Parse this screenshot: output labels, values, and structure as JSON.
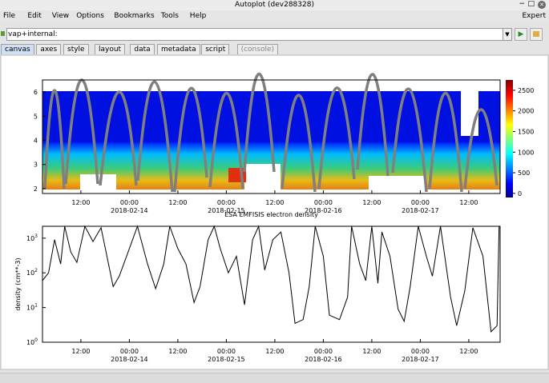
{
  "window": {
    "title": "Autoplot (dev288328)"
  },
  "menu": [
    "File",
    "Edit",
    "View",
    "Options",
    "Bookmarks",
    "Tools",
    "Help"
  ],
  "mode": "Expert",
  "uri": "vap+internal:",
  "tabs": [
    "canvas",
    "axes",
    "style",
    "layout",
    "data",
    "metadata",
    "script",
    "(console)"
  ],
  "chart_data": [
    {
      "type": "spectrogram",
      "xlim": [
        "2018-02-13T02:30",
        "2018-02-17T19:45"
      ],
      "xticks": [
        {
          "value": "2018-02-13T12:00",
          "label": "12:00"
        },
        {
          "value": "2018-02-14T00:00",
          "label": "00:00",
          "date": "2018-02-14"
        },
        {
          "value": "2018-02-14T12:00",
          "label": "12:00"
        },
        {
          "value": "2018-02-15T00:00",
          "label": "00:00",
          "date": "2018-02-15"
        },
        {
          "value": "2018-02-15T12:00",
          "label": "12:00"
        },
        {
          "value": "2018-02-16T00:00",
          "label": "00:00",
          "date": "2018-02-16"
        },
        {
          "value": "2018-02-16T12:00",
          "label": "12:00"
        },
        {
          "value": "2018-02-17T00:00",
          "label": "00:00",
          "date": "2018-02-17"
        },
        {
          "value": "2018-02-17T12:00",
          "label": "12:00"
        }
      ],
      "ylim": [
        1.8,
        6.5
      ],
      "yticks": [
        2,
        3,
        4,
        5,
        6
      ],
      "zlim": [
        -100,
        2750
      ],
      "zticks": [
        0,
        500,
        1000,
        1500,
        2000,
        2500
      ]
    },
    {
      "type": "line",
      "title": "ESA EMFISIS electron density",
      "ylabel": "density (cm**-3)",
      "log_y": true,
      "xlim": [
        "2018-02-13T02:30",
        "2018-02-17T19:45"
      ],
      "xticks": [
        {
          "value": "2018-02-13T12:00",
          "label": "12:00"
        },
        {
          "value": "2018-02-14T00:00",
          "label": "00:00",
          "date": "2018-02-14"
        },
        {
          "value": "2018-02-14T12:00",
          "label": "12:00"
        },
        {
          "value": "2018-02-15T00:00",
          "label": "00:00",
          "date": "2018-02-15"
        },
        {
          "value": "2018-02-15T12:00",
          "label": "12:00"
        },
        {
          "value": "2018-02-16T00:00",
          "label": "00:00",
          "date": "2018-02-16"
        },
        {
          "value": "2018-02-16T12:00",
          "label": "12:00"
        },
        {
          "value": "2018-02-17T00:00",
          "label": "00:00",
          "date": "2018-02-17"
        },
        {
          "value": "2018-02-17T12:00",
          "label": "12:00"
        }
      ],
      "ylim": [
        1,
        2200
      ],
      "yticks": [
        {
          "value": 1,
          "label": "10",
          "exponent": "0"
        },
        {
          "value": 10,
          "label": "10",
          "exponent": "1"
        },
        {
          "value": 100,
          "label": "10",
          "exponent": "2"
        },
        {
          "value": 1000,
          "label": "10",
          "exponent": "3"
        }
      ],
      "x": [
        "2018-02-13T02:30",
        "2018-02-13T04:00",
        "2018-02-13T05:30",
        "2018-02-13T07:00",
        "2018-02-13T08:00",
        "2018-02-13T09:30",
        "2018-02-13T11:00",
        "2018-02-13T13:00",
        "2018-02-13T15:00",
        "2018-02-13T17:00",
        "2018-02-13T20:00",
        "2018-02-13T21:30",
        "2018-02-14T00:00",
        "2018-02-14T02:00",
        "2018-02-14T04:30",
        "2018-02-14T06:30",
        "2018-02-14T08:30",
        "2018-02-14T10:00",
        "2018-02-14T12:00",
        "2018-02-14T14:00",
        "2018-02-14T16:00",
        "2018-02-14T17:30",
        "2018-02-14T19:30",
        "2018-02-14T21:00",
        "2018-02-14T22:30",
        "2018-02-15T00:30",
        "2018-02-15T02:30",
        "2018-02-15T04:30",
        "2018-02-15T06:30",
        "2018-02-15T08:00",
        "2018-02-15T09:30",
        "2018-02-15T11:30",
        "2018-02-15T13:30",
        "2018-02-15T15:30",
        "2018-02-15T17:00",
        "2018-02-15T19:00",
        "2018-02-15T20:30",
        "2018-02-15T22:00",
        "2018-02-16T00:00",
        "2018-02-16T01:30",
        "2018-02-16T04:00",
        "2018-02-16T06:00",
        "2018-02-16T07:00",
        "2018-02-16T09:00",
        "2018-02-16T10:30",
        "2018-02-16T12:00",
        "2018-02-16T13:30",
        "2018-02-16T14:30",
        "2018-02-16T16:30",
        "2018-02-16T18:30",
        "2018-02-16T20:00",
        "2018-02-16T21:30",
        "2018-02-16T23:30",
        "2018-02-17T01:30",
        "2018-02-17T03:00",
        "2018-02-17T05:00",
        "2018-02-17T07:30",
        "2018-02-17T09:00",
        "2018-02-17T11:00",
        "2018-02-17T13:00",
        "2018-02-17T15:30",
        "2018-02-17T17:30",
        "2018-02-17T19:00",
        "2018-02-17T19:30"
      ],
      "series": [
        {
          "color": "#000000",
          "values": [
            60,
            100,
            900,
            180,
            2200,
            400,
            200,
            2200,
            800,
            2000,
            40,
            80,
            500,
            2200,
            180,
            35,
            180,
            2200,
            500,
            180,
            14,
            40,
            900,
            2200,
            500,
            100,
            300,
            12,
            900,
            2200,
            120,
            900,
            1500,
            100,
            3.5,
            4.5,
            40,
            2200,
            300,
            6,
            4.5,
            20,
            2200,
            180,
            60,
            2200,
            50,
            1500,
            300,
            9,
            4,
            40,
            2200,
            300,
            80,
            2200,
            20,
            3,
            30,
            2000,
            300,
            2,
            3,
            2200
          ]
        }
      ]
    }
  ]
}
